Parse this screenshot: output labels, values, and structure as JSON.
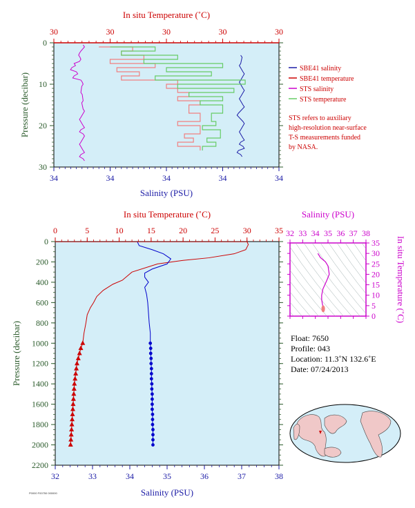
{
  "chart_data": [
    {
      "name": "top",
      "type": "line",
      "title_top": "In situ Temperature (˚C)",
      "xlabel": "Salinity (PSU)",
      "ylabel": "Pressure (decibar)",
      "ylim": [
        0,
        30
      ],
      "y_ticks": [
        "0",
        "10",
        "20",
        "30"
      ],
      "top_ticks": [
        "30",
        "30",
        "30",
        "30",
        "30"
      ],
      "bottom_ticks": [
        "34",
        "34",
        "34",
        "34",
        "34",
        "34",
        "34",
        "34",
        "34"
      ],
      "legend": [
        {
          "label": "SBE41 salinity",
          "color": "#1a1aa6"
        },
        {
          "label": "SBE41 temperature",
          "color": "#cc0000"
        },
        {
          "label": "STS salinity",
          "color": "#cc00cc"
        },
        {
          "label": "STS temperature",
          "color": "#66cc66"
        }
      ],
      "note": [
        "STS refers to auxiliary",
        "high-resolution near-surface",
        "T-S measurements funded",
        "by NASA."
      ],
      "series": [
        {
          "name": "STS salinity",
          "color": "#cc00cc",
          "x_frac": [
            0.13,
            0.12,
            0.11,
            0.12,
            0.09,
            0.08,
            0.1,
            0.09,
            0.12,
            0.13,
            0.12,
            0.13,
            0.13,
            0.12,
            0.13,
            0.12,
            0.13,
            0.12,
            0.13,
            0.12,
            0.13
          ],
          "y": [
            0.5,
            2,
            3,
            4,
            5,
            6,
            7,
            8,
            9,
            10,
            12,
            14,
            16,
            18,
            20,
            21,
            22,
            24,
            26,
            27,
            28
          ]
        },
        {
          "name": "SBE41 salinity",
          "color": "#1a1aa6",
          "x_frac": [
            0.83,
            0.83,
            0.84,
            0.83,
            0.84,
            0.83,
            0.84,
            0.82,
            0.84,
            0.83,
            0.84,
            0.83,
            0.84,
            0.82,
            0.83
          ],
          "y": [
            3,
            5,
            7,
            9,
            11,
            13,
            15,
            17,
            19,
            21,
            23,
            24,
            25,
            26,
            27
          ]
        },
        {
          "name": "SBE41 temperature",
          "color": "#f08080",
          "x_frac": [
            0.2,
            0.35,
            0.3,
            0.4,
            0.25,
            0.45,
            0.28,
            0.38,
            0.3,
            0.55,
            0.5,
            0.55,
            0.6,
            0.55,
            0.65,
            0.6,
            0.65,
            0.55,
            0.65,
            0.58,
            0.62,
            0.55,
            0.65
          ],
          "y": [
            1,
            2,
            3,
            4,
            5,
            6,
            7,
            8,
            9,
            10,
            11,
            12,
            13,
            14,
            15,
            17,
            19,
            20,
            22,
            23,
            24,
            25,
            26
          ]
        },
        {
          "name": "STS temperature",
          "color": "#66cc66",
          "x_frac": [
            0.25,
            0.45,
            0.3,
            0.55,
            0.4,
            0.75,
            0.5,
            0.7,
            0.45,
            0.85,
            0.55,
            0.8,
            0.6,
            0.75,
            0.65,
            0.75,
            0.7,
            0.72,
            0.66,
            0.74,
            0.68,
            0.72,
            0.66
          ],
          "y": [
            1,
            2,
            3,
            4,
            5,
            6,
            7,
            8,
            9,
            10,
            11,
            12,
            13,
            14,
            15,
            17,
            19,
            20,
            21,
            23,
            24,
            25,
            26
          ]
        }
      ]
    },
    {
      "name": "main",
      "type": "line",
      "title_top": "In situ Temperature (˚C)",
      "xlabel": "Salinity (PSU)",
      "ylabel": "Pressure (decibar)",
      "xlim_temp": [
        0,
        35
      ],
      "xlim_sal": [
        32,
        38
      ],
      "ylim": [
        0,
        2200
      ],
      "temp_ticks": [
        "0",
        "5",
        "10",
        "15",
        "20",
        "25",
        "30",
        "35"
      ],
      "sal_ticks": [
        "32",
        "33",
        "34",
        "35",
        "36",
        "37",
        "38"
      ],
      "p_ticks": [
        "0",
        "200",
        "400",
        "600",
        "800",
        "1000",
        "1200",
        "1400",
        "1600",
        "1800",
        "2000",
        "2200"
      ],
      "series": [
        {
          "name": "Temperature",
          "color": "#cc0000",
          "line": [
            [
              30.0,
              0
            ],
            [
              30.2,
              30
            ],
            [
              29.8,
              80
            ],
            [
              28,
              120
            ],
            [
              24,
              160
            ],
            [
              20,
              185
            ],
            [
              16,
              220
            ],
            [
              12,
              300
            ],
            [
              10.5,
              380
            ],
            [
              9,
              420
            ],
            [
              7.5,
              480
            ],
            [
              6.5,
              540
            ],
            [
              6,
              600
            ],
            [
              5.5,
              650
            ],
            [
              5,
              720
            ],
            [
              4.8,
              800
            ],
            [
              4.5,
              900
            ],
            [
              4.3,
              1000
            ]
          ],
          "markers": [
            [
              4.3,
              1000
            ],
            [
              4.0,
              1050
            ],
            [
              3.8,
              1100
            ],
            [
              3.6,
              1150
            ],
            [
              3.4,
              1200
            ],
            [
              3.3,
              1250
            ],
            [
              3.2,
              1300
            ],
            [
              3.1,
              1350
            ],
            [
              3.0,
              1400
            ],
            [
              2.95,
              1450
            ],
            [
              2.9,
              1500
            ],
            [
              2.85,
              1550
            ],
            [
              2.8,
              1600
            ],
            [
              2.75,
              1650
            ],
            [
              2.7,
              1700
            ],
            [
              2.65,
              1750
            ],
            [
              2.6,
              1800
            ],
            [
              2.55,
              1850
            ],
            [
              2.5,
              1900
            ],
            [
              2.45,
              1950
            ],
            [
              2.4,
              2000
            ]
          ]
        },
        {
          "name": "Salinity",
          "color": "#0000cc",
          "line": [
            [
              34.2,
              0
            ],
            [
              34.25,
              40
            ],
            [
              34.6,
              80
            ],
            [
              34.9,
              120
            ],
            [
              35.1,
              170
            ],
            [
              35.0,
              220
            ],
            [
              34.6,
              270
            ],
            [
              34.4,
              310
            ],
            [
              34.4,
              350
            ],
            [
              34.5,
              400
            ],
            [
              34.4,
              450
            ],
            [
              34.45,
              520
            ],
            [
              34.48,
              600
            ],
            [
              34.5,
              700
            ],
            [
              34.52,
              800
            ],
            [
              34.55,
              900
            ],
            [
              34.55,
              1000
            ]
          ],
          "markers": [
            [
              34.55,
              1000
            ],
            [
              34.56,
              1050
            ],
            [
              34.56,
              1100
            ],
            [
              34.57,
              1150
            ],
            [
              34.57,
              1200
            ],
            [
              34.58,
              1250
            ],
            [
              34.58,
              1300
            ],
            [
              34.58,
              1350
            ],
            [
              34.59,
              1400
            ],
            [
              34.59,
              1450
            ],
            [
              34.6,
              1500
            ],
            [
              34.6,
              1550
            ],
            [
              34.6,
              1600
            ],
            [
              34.6,
              1650
            ],
            [
              34.61,
              1700
            ],
            [
              34.61,
              1750
            ],
            [
              34.61,
              1800
            ],
            [
              34.62,
              1850
            ],
            [
              34.62,
              1900
            ],
            [
              34.62,
              1950
            ],
            [
              34.62,
              2000
            ]
          ]
        }
      ]
    },
    {
      "name": "ts-diagram",
      "type": "scatter",
      "title_top": "Salinity (PSU)",
      "ylabel_right": "In situ Temperature (˚C)",
      "xlim": [
        32,
        38
      ],
      "ylim": [
        0,
        35
      ],
      "x_ticks": [
        "32",
        "33",
        "34",
        "35",
        "36",
        "37",
        "38"
      ],
      "y_ticks": [
        "0",
        "5",
        "10",
        "15",
        "20",
        "25",
        "30",
        "35"
      ],
      "curve": [
        [
          34.2,
          30
        ],
        [
          34.4,
          28
        ],
        [
          34.8,
          26
        ],
        [
          35.0,
          24
        ],
        [
          35.1,
          20
        ],
        [
          34.9,
          17
        ],
        [
          34.6,
          13
        ],
        [
          34.5,
          10
        ],
        [
          34.5,
          8
        ],
        [
          34.55,
          6
        ],
        [
          34.6,
          4.5
        ],
        [
          34.62,
          2.5
        ]
      ]
    }
  ],
  "info": {
    "float": "Float:  7650",
    "profile": "Profile:  043",
    "location": "Location:  11.3˚N  132.6˚E",
    "date": "Date:  07/24/2013"
  },
  "footer_tiny": "P0000 F00750 000000"
}
